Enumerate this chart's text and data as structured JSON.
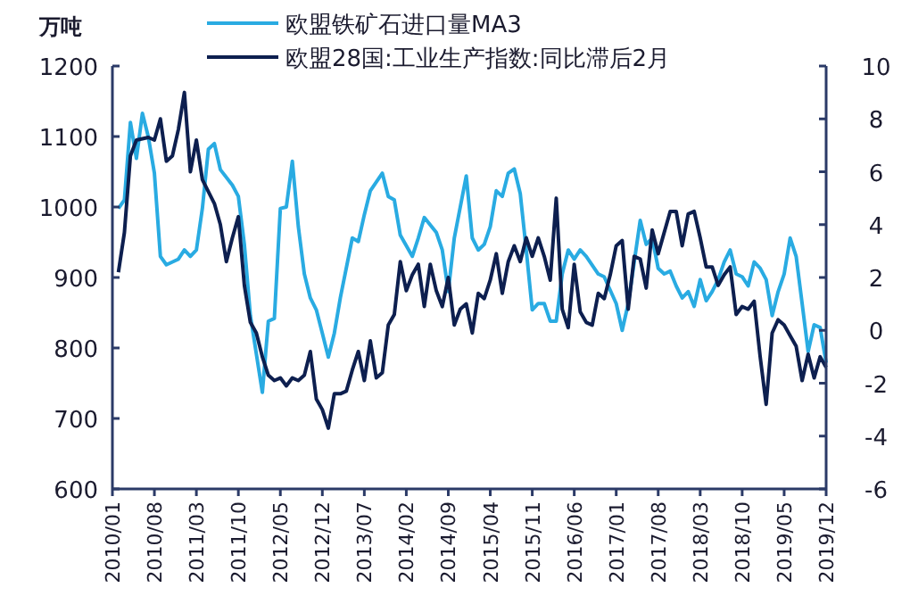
{
  "chart_data": {
    "type": "line",
    "ylabel": "万吨",
    "legend": "top",
    "marker": "none",
    "line_style": "solid",
    "grid": false,
    "xlim": [
      "2010-01",
      "2019-12"
    ],
    "xticks": [
      {
        "value": "2010-01",
        "label": "2010/01"
      },
      {
        "value": "2010-08",
        "label": "2010/08"
      },
      {
        "value": "2011-03",
        "label": "2011/03"
      },
      {
        "value": "2011-10",
        "label": "2011/10"
      },
      {
        "value": "2012-05",
        "label": "2012/05"
      },
      {
        "value": "2012-12",
        "label": "2012/12"
      },
      {
        "value": "2013-07",
        "label": "2013/07"
      },
      {
        "value": "2014-02",
        "label": "2014/02"
      },
      {
        "value": "2014-09",
        "label": "2014/09"
      },
      {
        "value": "2015-04",
        "label": "2015/04"
      },
      {
        "value": "2015-11",
        "label": "2015/11"
      },
      {
        "value": "2016-06",
        "label": "2016/06"
      },
      {
        "value": "2017-01",
        "label": "2017/01"
      },
      {
        "value": "2017-08",
        "label": "2017/08"
      },
      {
        "value": "2018-03",
        "label": "2018/03"
      },
      {
        "value": "2018-10",
        "label": "2018/10"
      },
      {
        "value": "2019-05",
        "label": "2019/05"
      },
      {
        "value": "2019-12",
        "label": "2019/12"
      }
    ],
    "ylim": [
      600,
      1200
    ],
    "yticks": [
      600,
      700,
      800,
      900,
      1000,
      1100,
      1200
    ],
    "y2lim": [
      -6,
      10
    ],
    "y2ticks": [
      -6,
      -4,
      -2,
      0,
      2,
      4,
      6,
      8,
      10
    ],
    "series": [
      {
        "name": "欧盟铁矿石进口量MA3",
        "color": "#29abe2",
        "x": [
          "2010-02",
          "2010-03",
          "2010-04",
          "2010-05",
          "2010-06",
          "2010-07",
          "2010-08",
          "2010-09",
          "2010-10",
          "2010-12",
          "2011-01",
          "2011-02",
          "2011-03",
          "2011-04",
          "2011-05",
          "2011-06",
          "2011-07",
          "2011-09",
          "2011-10",
          "2011-11",
          "2011-12",
          "2012-02",
          "2012-03",
          "2012-04",
          "2012-05",
          "2012-06",
          "2012-07",
          "2012-08",
          "2012-09",
          "2012-10",
          "2012-11",
          "2012-12",
          "2013-01",
          "2013-02",
          "2013-03",
          "2013-05",
          "2013-06",
          "2013-07",
          "2013-08",
          "2013-10",
          "2013-11",
          "2013-12",
          "2014-01",
          "2014-03",
          "2014-04",
          "2014-05",
          "2014-07",
          "2014-08",
          "2014-09",
          "2014-10",
          "2014-12",
          "2015-01",
          "2015-02",
          "2015-03",
          "2015-04",
          "2015-05",
          "2015-06",
          "2015-07",
          "2015-08",
          "2015-09",
          "2015-10",
          "2015-11",
          "2015-12",
          "2016-01",
          "2016-02",
          "2016-03",
          "2016-04",
          "2016-05",
          "2016-06",
          "2016-07",
          "2016-08",
          "2016-10",
          "2016-11",
          "2017-01",
          "2017-02",
          "2017-03",
          "2017-04",
          "2017-05",
          "2017-06",
          "2017-07",
          "2017-08",
          "2017-09",
          "2017-10",
          "2017-11",
          "2017-12",
          "2018-01",
          "2018-02",
          "2018-03",
          "2018-04",
          "2018-05",
          "2018-06",
          "2018-07",
          "2018-08",
          "2018-09",
          "2018-10",
          "2018-11",
          "2018-12",
          "2019-01",
          "2019-02",
          "2019-03",
          "2019-04",
          "2019-05",
          "2019-06",
          "2019-07",
          "2019-08",
          "2019-09",
          "2019-10",
          "2019-11",
          "2019-12"
        ],
        "values": [
          998,
          1010,
          1120,
          1069,
          1133,
          1099,
          1048,
          930,
          918,
          926,
          939,
          930,
          939,
          998,
          1082,
          1090,
          1053,
          1031,
          1015,
          947,
          846,
          737,
          838,
          842,
          998,
          1000,
          1065,
          972,
          905,
          871,
          854,
          821,
          787,
          821,
          871,
          956,
          951,
          989,
          1023,
          1048,
          1015,
          1010,
          960,
          930,
          956,
          985,
          964,
          939,
          880,
          956,
          1044,
          956,
          939,
          947,
          972,
          1023,
          1015,
          1048,
          1054,
          1019,
          939,
          854,
          863,
          863,
          838,
          838,
          905,
          939,
          926,
          939,
          930,
          905,
          901,
          863,
          825,
          863,
          922,
          981,
          947,
          956,
          913,
          905,
          909,
          888,
          871,
          880,
          859,
          897,
          867,
          880,
          897,
          922,
          939,
          905,
          901,
          888,
          922,
          913,
          897,
          846,
          880,
          905,
          956,
          930,
          863,
          795,
          833,
          829,
          779
        ]
      },
      {
        "name": "欧盟28国:工业生产指数:同比滞后2月",
        "color": "#0d1f4f",
        "axis": "y2",
        "x": [
          "2010-02",
          "2010-03",
          "2010-04",
          "2010-05",
          "2010-07",
          "2010-08",
          "2010-09",
          "2010-10",
          "2010-11",
          "2010-12",
          "2011-01",
          "2011-02",
          "2011-03",
          "2011-04",
          "2011-06",
          "2011-07",
          "2011-08",
          "2011-09",
          "2011-10",
          "2011-11",
          "2011-12",
          "2012-01",
          "2012-02",
          "2012-03",
          "2012-04",
          "2012-05",
          "2012-06",
          "2012-07",
          "2012-08",
          "2012-09",
          "2012-10",
          "2012-11",
          "2012-12",
          "2013-01",
          "2013-02",
          "2013-03",
          "2013-04",
          "2013-05",
          "2013-06",
          "2013-07",
          "2013-08",
          "2013-09",
          "2013-10",
          "2013-11",
          "2013-12",
          "2014-01",
          "2014-02",
          "2014-03",
          "2014-04",
          "2014-05",
          "2014-06",
          "2014-07",
          "2014-08",
          "2014-09",
          "2014-10",
          "2014-11",
          "2014-12",
          "2015-01",
          "2015-02",
          "2015-03",
          "2015-04",
          "2015-05",
          "2015-06",
          "2015-07",
          "2015-08",
          "2015-09",
          "2015-10",
          "2015-11",
          "2015-12",
          "2016-01",
          "2016-02",
          "2016-03",
          "2016-04",
          "2016-05",
          "2016-06",
          "2016-07",
          "2016-08",
          "2016-09",
          "2016-10",
          "2016-11",
          "2016-12",
          "2017-01",
          "2017-02",
          "2017-03",
          "2017-04",
          "2017-05",
          "2017-06",
          "2017-07",
          "2017-08",
          "2017-09",
          "2017-10",
          "2017-11",
          "2017-12",
          "2018-01",
          "2018-02",
          "2018-03",
          "2018-04",
          "2018-05",
          "2018-06",
          "2018-07",
          "2018-08",
          "2018-09",
          "2018-10",
          "2018-11",
          "2018-12",
          "2019-01",
          "2019-02",
          "2019-03",
          "2019-04",
          "2019-05",
          "2019-06",
          "2019-07",
          "2019-08",
          "2019-09",
          "2019-10",
          "2019-11",
          "2019-12"
        ],
        "values": [
          2.2,
          3.7,
          6.6,
          7.2,
          7.3,
          7.2,
          8.0,
          6.4,
          6.6,
          7.6,
          9.0,
          6.0,
          7.2,
          5.7,
          4.8,
          4.0,
          2.6,
          3.5,
          4.3,
          1.7,
          0.3,
          -0.1,
          -1.0,
          -1.7,
          -1.9,
          -1.8,
          -2.1,
          -1.8,
          -1.9,
          -1.7,
          -0.8,
          -2.6,
          -3.0,
          -3.7,
          -2.4,
          -2.4,
          -2.3,
          -1.5,
          -0.8,
          -1.9,
          -0.4,
          -1.8,
          -1.6,
          0.2,
          0.6,
          2.6,
          1.5,
          2.1,
          2.5,
          0.9,
          2.5,
          1.5,
          0.9,
          2.0,
          0.2,
          0.8,
          1.0,
          -0.1,
          1.4,
          1.2,
          1.9,
          2.9,
          1.4,
          2.6,
          3.2,
          2.6,
          3.5,
          2.8,
          3.5,
          2.8,
          1.9,
          5.0,
          0.8,
          0.1,
          2.5,
          0.7,
          0.3,
          0.2,
          1.4,
          1.2,
          2.1,
          3.2,
          3.4,
          0.8,
          2.8,
          2.7,
          1.6,
          3.8,
          2.9,
          3.7,
          4.5,
          4.5,
          3.2,
          4.4,
          4.5,
          3.5,
          2.4,
          2.4,
          1.7,
          2.1,
          2.4,
          0.6,
          0.9,
          0.8,
          1.1,
          -1.0,
          -2.8,
          -0.1,
          0.4,
          0.2,
          -0.2,
          -0.6,
          -1.9,
          -0.9,
          -1.8,
          -1.0,
          -1.4
        ]
      }
    ]
  }
}
